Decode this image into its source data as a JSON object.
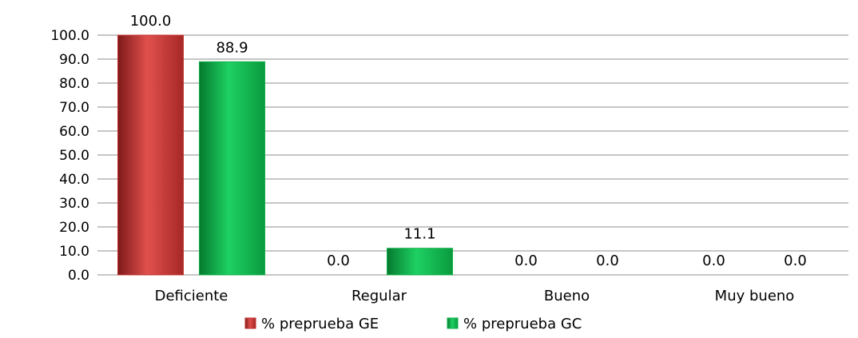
{
  "chart_data": {
    "type": "bar",
    "categories": [
      "Deficiente",
      "Regular",
      "Bueno",
      "Muy bueno"
    ],
    "series": [
      {
        "name": "% preprueba GE",
        "color": "#c0302e",
        "values": [
          100.0,
          0.0,
          0.0,
          0.0
        ]
      },
      {
        "name": "% preprueba GC",
        "color": "#10b04a",
        "values": [
          88.9,
          11.1,
          0.0,
          0.0
        ]
      }
    ],
    "ylim": [
      0,
      100
    ],
    "yticks": [
      "0.0",
      "10.0",
      "20.0",
      "30.0",
      "40.0",
      "50.0",
      "60.0",
      "70.0",
      "80.0",
      "90.0",
      "100.0"
    ],
    "grid": true,
    "legend_position": "bottom",
    "data_labels": true
  }
}
